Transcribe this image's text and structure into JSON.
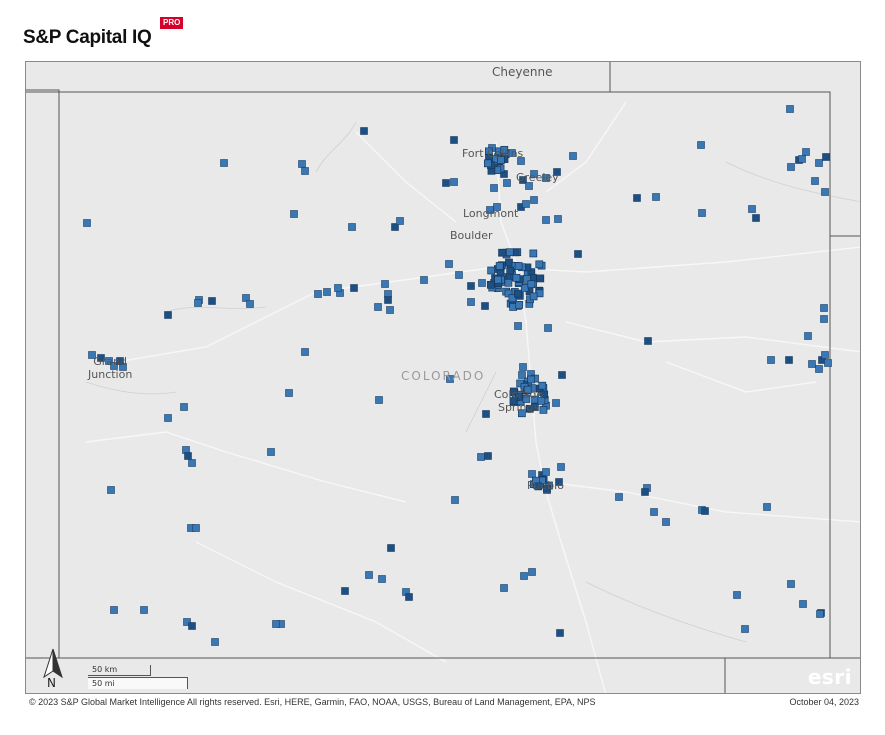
{
  "header": {
    "brand": "S&P Capital IQ",
    "badge": "PRO"
  },
  "map": {
    "cities": {
      "cheyenne": "Cheyenne",
      "fort_collins": "Fort Collins",
      "greeley": "Greeley",
      "longmont": "Longmont",
      "boulder": "Boulder",
      "grand_junction_1": "Grand",
      "grand_junction_2": "Junction",
      "colorado_springs_1": "Colorado",
      "colorado_springs_2": "Springs",
      "pueblo": "Pueblo"
    },
    "state_label": "COLORADO",
    "scale": {
      "km": "50 km",
      "mi": "50 mi"
    },
    "north_label": "N",
    "logo": "esri",
    "marker_color": "#3a78b5",
    "marker_dark_color": "#1d4f82",
    "background_color": "#e9e9e9"
  },
  "footer": {
    "attribution": "© 2023  S&P Global Market Intelligence  All rights reserved. Esri, HERE, Garmin, FAO, NOAA, USGS, Bureau of Land Management, EPA, NPS",
    "date": "October 04, 2023"
  }
}
